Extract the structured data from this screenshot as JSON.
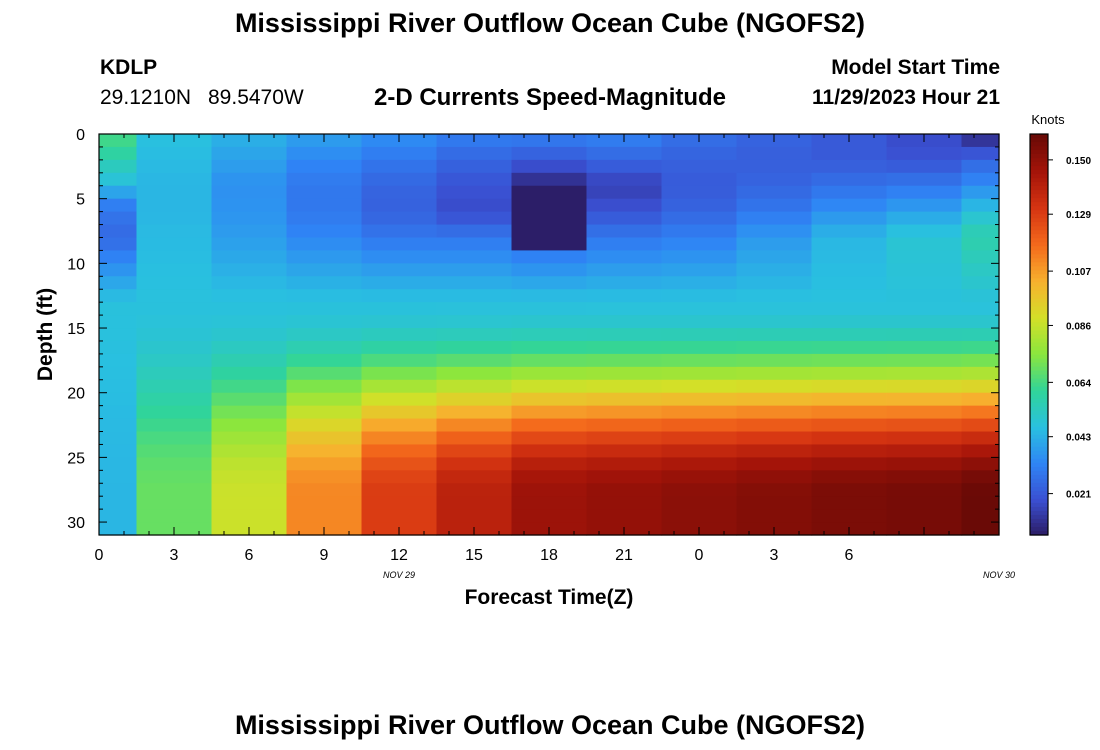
{
  "page": {
    "title": "Mississippi River Outflow Ocean Cube (NGOFS2)",
    "bottom_title": "Mississippi River Outflow Ocean Cube (NGOFS2)",
    "station_id": "KDLP",
    "lat": "29.1210N",
    "lon": "89.5470W",
    "subtitle": "2-D Currents Speed-Magnitude",
    "start_label": "Model Start Time",
    "start_value": "11/29/2023 Hour 21"
  },
  "chart_data": {
    "type": "heatmap",
    "xlabel": "Forecast Time(Z)",
    "ylabel": "Depth (ft)",
    "x_tick_labels": [
      "0",
      "3",
      "6",
      "9",
      "12",
      "15",
      "18",
      "21",
      "0",
      "3",
      "6"
    ],
    "x_date_labels": [
      {
        "label": "NOV 29",
        "at_hour": 12
      },
      {
        "label": "NOV 30",
        "at_hour": 36
      }
    ],
    "x_range_hours": [
      0,
      36
    ],
    "y_ticks": [
      0,
      5,
      10,
      15,
      20,
      25,
      30
    ],
    "y_range": [
      0,
      31
    ],
    "colorbar": {
      "title": "Knots",
      "ticks": [
        0.15,
        0.129,
        0.107,
        0.086,
        0.064,
        0.043,
        0.021
      ],
      "tick_labels": [
        "0.150",
        "0.129",
        "0.107",
        "0.086",
        "0.064",
        "0.043",
        "0.021"
      ],
      "range": [
        0.005,
        0.16
      ],
      "colors": [
        "#2b1a60",
        "#3a4fd1",
        "#2f84f5",
        "#29c0e0",
        "#30d49a",
        "#8ae63e",
        "#d3e028",
        "#f7b12e",
        "#f46a1c",
        "#d63512",
        "#a51409",
        "#6a0a06"
      ]
    },
    "x_bounds": [
      0,
      1.5,
      4.5,
      7.5,
      10.5,
      13.5,
      16.5,
      19.5,
      22.5,
      25.5,
      28.5,
      31.5,
      34.5,
      36
    ],
    "profiles": [
      {
        "top": [
          0.065,
          0.062,
          0.055,
          0.05,
          0.04,
          0.03,
          0.028,
          0.026
        ],
        "bottom": 0.045,
        "dip": null
      },
      {
        "top": [
          0.048,
          0.046,
          0.045,
          0.045,
          0.046
        ],
        "bottom": 0.07,
        "dip": null
      },
      {
        "top": [
          0.044,
          0.04,
          0.036,
          0.037,
          0.039
        ],
        "bottom": 0.088,
        "dip": null
      },
      {
        "top": [
          0.04,
          0.034,
          0.03,
          0.03,
          0.034
        ],
        "bottom": 0.112,
        "dip": null
      },
      {
        "top": [
          0.036,
          0.03,
          0.025,
          0.024,
          0.03
        ],
        "bottom": 0.13,
        "dip": null
      },
      {
        "top": [
          0.032,
          0.025,
          0.02,
          0.018,
          0.03
        ],
        "bottom": 0.14,
        "dip": null
      },
      {
        "top": [
          0.032,
          0.022,
          0.008,
          0.008,
          0.026
        ],
        "bottom": 0.148,
        "dip": {
          "from": 4.5,
          "to": 8.5,
          "value": 0.006
        }
      },
      {
        "top": [
          0.033,
          0.025,
          0.015,
          0.02,
          0.03
        ],
        "bottom": 0.15,
        "dip": null
      },
      {
        "top": [
          0.028,
          0.024,
          0.022,
          0.025,
          0.032
        ],
        "bottom": 0.152,
        "dip": null
      },
      {
        "top": [
          0.025,
          0.023,
          0.025,
          0.03,
          0.038
        ],
        "bottom": 0.154,
        "dip": null
      },
      {
        "top": [
          0.022,
          0.022,
          0.028,
          0.036,
          0.045
        ],
        "bottom": 0.156,
        "dip": null
      },
      {
        "top": [
          0.018,
          0.02,
          0.03,
          0.04,
          0.05
        ],
        "bottom": 0.157,
        "dip": null
      },
      {
        "top": [
          0.008,
          0.025,
          0.035,
          0.048,
          0.058
        ],
        "bottom": 0.16,
        "dip": null
      }
    ]
  }
}
